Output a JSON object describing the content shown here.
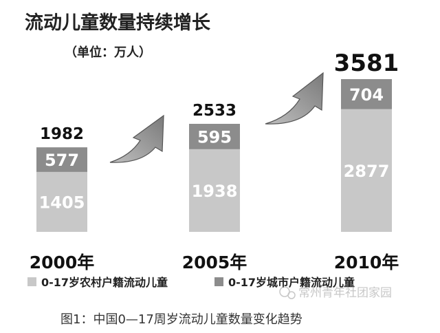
{
  "chart_data": {
    "type": "bar",
    "stacked": true,
    "title": "流动儿童数量持续增长",
    "subtitle": "（单位：万人）",
    "categories": [
      "2000年",
      "2005年",
      "2010年"
    ],
    "series": [
      {
        "name": "0-17岁农村户籍流动儿童",
        "values": [
          1405,
          1938,
          2877
        ],
        "color": "#c8c8c8"
      },
      {
        "name": "0-17岁城市户籍流动儿童",
        "values": [
          577,
          595,
          704
        ],
        "color": "#8c8c8c"
      }
    ],
    "totals": [
      "1982",
      "2533",
      "3581"
    ],
    "legend_position": "bottom"
  },
  "caption": "图1：中国0—17周岁流动儿童数量变化趋势",
  "watermark": "常州青年社团家园"
}
